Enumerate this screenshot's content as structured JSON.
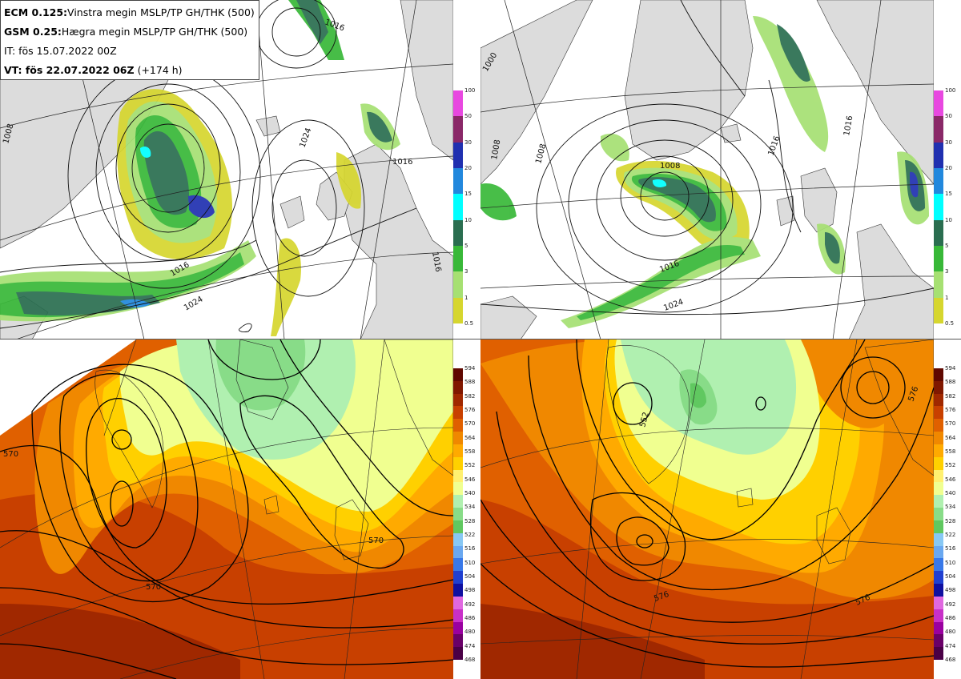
{
  "header": {
    "line1_model": "ECM 0.125:",
    "line1_text": "Vinstra megin MSLP/TP GH/THK (500)",
    "line2_model": "GSM 0.25:",
    "line2_text": "Hægra megin MSLP/TP GH/THK (500)",
    "line3_text": "IT: fös 15.07.2022 00Z",
    "line4_label": "VT: fös 22.07.2022 06Z",
    "line4_lead": "(+174 h)"
  },
  "colors": {
    "land": "#dcdcdc",
    "sea": "#ffffff",
    "precip": [
      "#d6d62e",
      "#a6e072",
      "#38b838",
      "#2a6e50",
      "#00ffff",
      "#2288dd",
      "#2030b0",
      "#8a2868",
      "#e848e0"
    ],
    "thickness": [
      "#4a0046",
      "#6a0068",
      "#9a00a0",
      "#c830c8",
      "#e068e0",
      "#1010a0",
      "#2040d0",
      "#3878e8",
      "#6aa8f0",
      "#88c8f4",
      "#60c860",
      "#88dc88",
      "#b0f0b0",
      "#f0ff90",
      "#fff070",
      "#ffd000",
      "#ffaa00",
      "#f08800",
      "#e06000",
      "#c84000",
      "#a02800",
      "#801800",
      "#600800"
    ]
  },
  "precip_scale": [
    "100",
    "50",
    "30",
    "20",
    "15",
    "10",
    "5",
    "3",
    "1",
    "0.5"
  ],
  "thickness_scale": [
    "594",
    "588",
    "582",
    "576",
    "570",
    "564",
    "558",
    "552",
    "546",
    "540",
    "534",
    "528",
    "522",
    "516",
    "510",
    "504",
    "498",
    "492",
    "486",
    "480",
    "474",
    "468"
  ],
  "panel_tl": {
    "isobars": [
      "1008",
      "1016",
      "1016",
      "1024",
      "1024",
      "1016",
      "1016"
    ]
  },
  "panel_tr": {
    "isobars": [
      "1000",
      "1008",
      "1008",
      "1008",
      "1016",
      "1016",
      "1016",
      "1024"
    ]
  },
  "panel_bl": {
    "heights": [
      "570",
      "570",
      "570"
    ]
  },
  "panel_br": {
    "heights": [
      "552",
      "576",
      "576",
      "576"
    ]
  }
}
